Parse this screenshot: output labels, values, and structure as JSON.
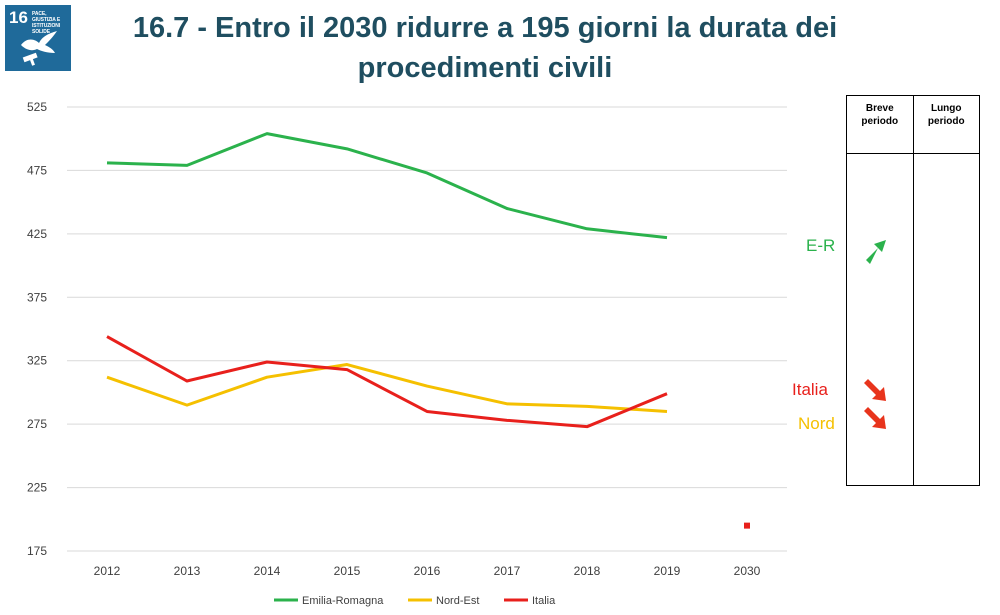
{
  "logo": {
    "number": "16",
    "text": "PACE, GIUSTIZIA E ISTITUZIONI SOLIDE",
    "color": "#1f6a9a"
  },
  "title": "16.7 - Entro il 2030 ridurre a 195 giorni la durata dei procedimenti civili",
  "chart_data": {
    "type": "line",
    "title": "16.7 - Entro il 2030 ridurre a 195 giorni la durata dei procedimenti civili",
    "xlabel": "",
    "ylabel": "",
    "categories": [
      "2012",
      "2013",
      "2014",
      "2015",
      "2016",
      "2017",
      "2018",
      "2019",
      "2030"
    ],
    "ylim": [
      175,
      525
    ],
    "yticks": [
      175,
      225,
      275,
      325,
      375,
      425,
      475,
      525
    ],
    "grid": true,
    "legend": "bottom",
    "series": [
      {
        "name": "Emilia-Romagna",
        "color": "#2bb24c",
        "values": [
          481,
          479,
          504,
          492,
          473,
          445,
          429,
          422,
          null
        ]
      },
      {
        "name": "Nord-Est",
        "color": "#f5c000",
        "values": [
          312,
          290,
          312,
          322,
          305,
          291,
          289,
          285,
          null
        ]
      },
      {
        "name": "Italia",
        "color": "#e8201c",
        "values": [
          344,
          309,
          324,
          318,
          285,
          278,
          273,
          299,
          null
        ]
      }
    ],
    "target": {
      "category": "2030",
      "value": 195,
      "color": "#e8201c"
    }
  },
  "trend_labels": [
    {
      "text": "E-R",
      "color": "#2bb24c",
      "arrow": "up-right-arrow"
    },
    {
      "text": "Italia",
      "color": "#e8201c",
      "arrow": "down-right-arrow"
    },
    {
      "text": "Nord",
      "color": "#f5c000",
      "arrow": "down-right-arrow"
    }
  ],
  "trend_table": {
    "headers": [
      "Breve periodo",
      "Lungo periodo"
    ]
  }
}
